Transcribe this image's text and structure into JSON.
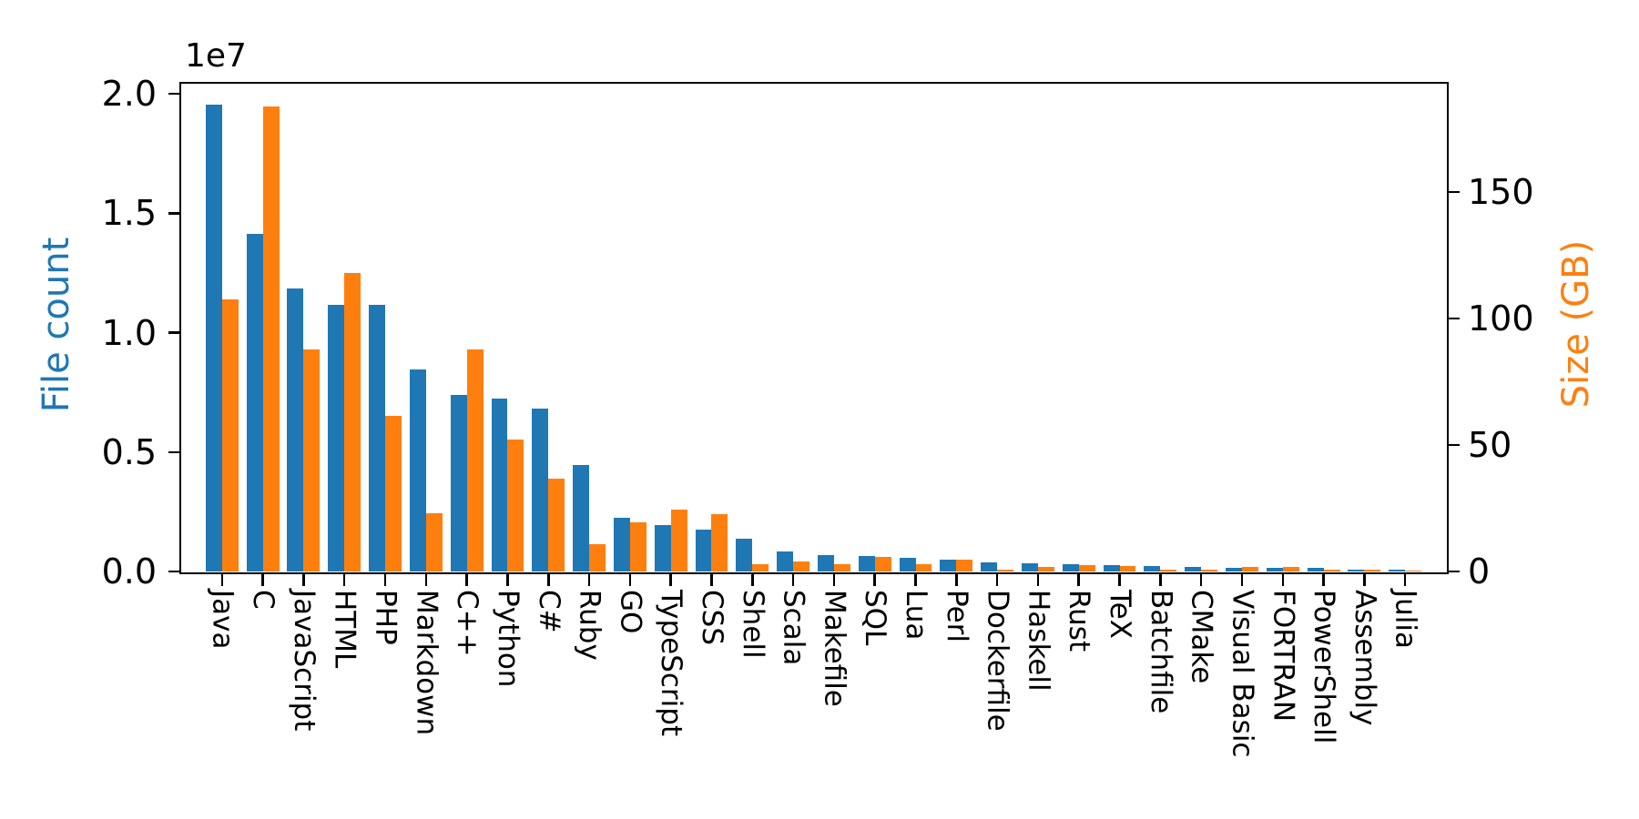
{
  "chart_data": {
    "type": "bar",
    "title": "",
    "xlabel": "",
    "grid": false,
    "legend": "none",
    "bar_width_fraction": 0.4,
    "categories": [
      "Java",
      "C",
      "JavaScript",
      "HTML",
      "PHP",
      "Markdown",
      "C++",
      "Python",
      "C#",
      "Ruby",
      "GO",
      "TypeScript",
      "CSS",
      "Shell",
      "Scala",
      "Makefile",
      "SQL",
      "Lua",
      "Perl",
      "Dockerfile",
      "Haskell",
      "Rust",
      "TeX",
      "Batchfile",
      "CMake",
      "Visual Basic",
      "FORTRAN",
      "PowerShell",
      "Assembly",
      "Julia"
    ],
    "series": [
      {
        "name": "File count",
        "axis": "left",
        "color": "#1f77b4",
        "values": [
          19548190,
          14143113,
          11839883,
          11178557,
          11177610,
          8464626,
          7380520,
          7226626,
          6811652,
          4473331,
          2265436,
          1940406,
          1734406,
          1385648,
          835755,
          679430,
          656671,
          578554,
          497949,
          366505,
          340623,
          322431,
          251015,
          236945,
          175282,
          155652,
          142038,
          136846,
          82905,
          58317
        ]
      },
      {
        "name": "Size (GB)",
        "axis": "right",
        "color": "#ff7f0e",
        "values": [
          107.7,
          183.83,
          87.82,
          118.12,
          61.41,
          23.09,
          87.73,
          52.03,
          36.83,
          10.95,
          19.28,
          24.59,
          22.67,
          3.01,
          3.87,
          2.92,
          5.67,
          2.81,
          4.7,
          0.71,
          1.85,
          2.68,
          2.15,
          0.7,
          0.54,
          1.91,
          1.62,
          0.69,
          0.78,
          0.29
        ]
      }
    ],
    "left_axis": {
      "label": "File count",
      "color": "#1f77b4",
      "offset_text": "1e7",
      "range": [
        0,
        20420000
      ],
      "ticks": [
        {
          "label": "0.0",
          "value": 0
        },
        {
          "label": "0.5",
          "value": 5000000
        },
        {
          "label": "1.0",
          "value": 10000000
        },
        {
          "label": "1.5",
          "value": 15000000
        },
        {
          "label": "2.0",
          "value": 20000000
        }
      ]
    },
    "right_axis": {
      "label": "Size (GB)",
      "color": "#ff7f0e",
      "range": [
        0,
        192.8
      ],
      "ticks": [
        {
          "label": "0",
          "value": 0
        },
        {
          "label": "50",
          "value": 50
        },
        {
          "label": "100",
          "value": 100
        },
        {
          "label": "150",
          "value": 150
        }
      ]
    }
  }
}
